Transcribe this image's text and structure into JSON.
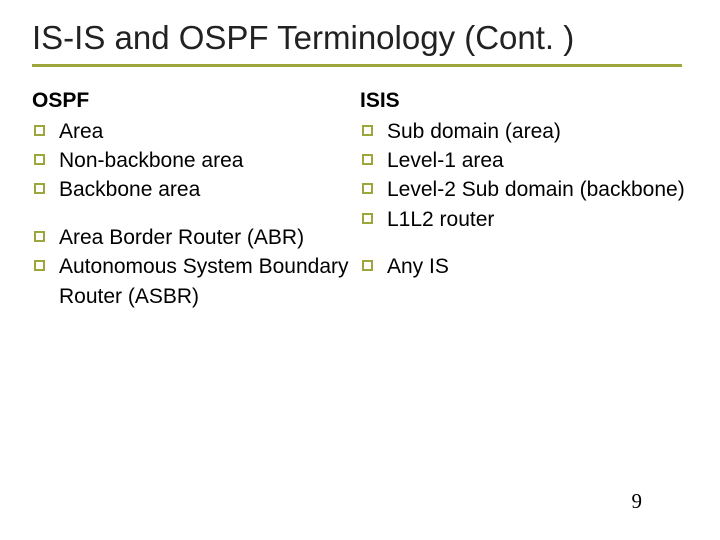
{
  "title": "IS-IS and OSPF Terminology (Cont. )",
  "accent_color": "#9ca63a",
  "text_color": "#000000",
  "background_color": "#ffffff",
  "title_fontsize": 33,
  "body_fontsize": 21,
  "left": {
    "header": "OSPF",
    "group1": [
      "Area",
      "Non-backbone area",
      "Backbone area"
    ],
    "group2": [
      "Area Border Router (ABR)",
      "Autonomous System Boundary Router (ASBR)"
    ]
  },
  "right": {
    "header": "ISIS",
    "group1": [
      "Sub domain (area)",
      "Level-1 area",
      "Level-2 Sub domain (backbone)",
      "L1L2 router"
    ],
    "group2": [
      "Any IS"
    ]
  },
  "page_number": "9"
}
